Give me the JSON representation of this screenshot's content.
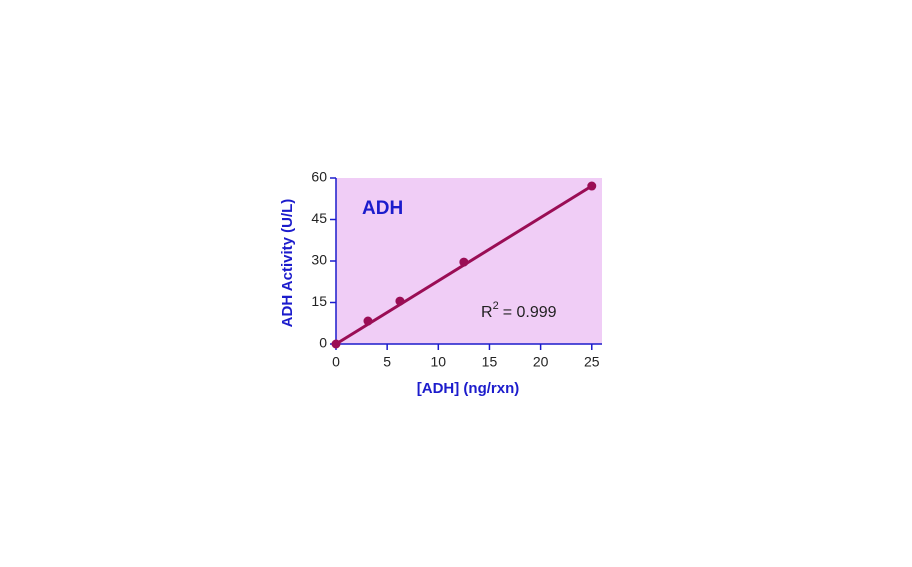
{
  "chart_data": {
    "type": "scatter",
    "annotation_title": "ADH",
    "annotation_r2": {
      "base": "R",
      "superscript": "2",
      "text": "= 0.999"
    },
    "xlabel": "[ADH] (ng/rxn)",
    "ylabel": "ADH Activity (U/L)",
    "xlim": [
      0,
      26
    ],
    "ylim": [
      0,
      60
    ],
    "xticks": [
      0,
      5,
      10,
      15,
      20,
      25
    ],
    "yticks": [
      0,
      15,
      30,
      45,
      60
    ],
    "background": "#f0cdf6",
    "axis_color": "#1c1ccc",
    "series": [
      {
        "kind": "points",
        "color": "#9a0d55",
        "x": [
          0,
          3.125,
          6.25,
          12.5,
          25
        ],
        "values": [
          0,
          8.3,
          15.5,
          29.6,
          57.1
        ]
      },
      {
        "kind": "fit",
        "color": "#9a0d55",
        "x": [
          0,
          25
        ],
        "values": [
          0,
          57.1
        ]
      }
    ]
  }
}
